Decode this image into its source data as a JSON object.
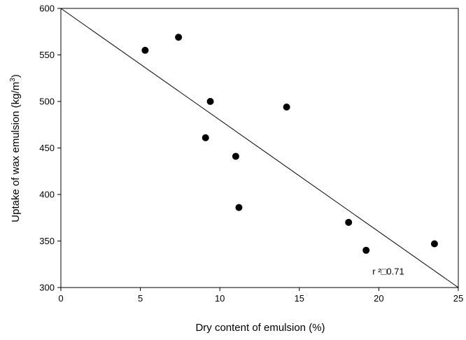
{
  "chart_data": {
    "type": "scatter",
    "title": "",
    "xlabel": "Dry content of emulsion (%)",
    "ylabel_main": "Uptake of wax emulsion (kg/m",
    "ylabel_sup": "3",
    "ylabel_close": ")",
    "xlim": [
      0,
      25
    ],
    "ylim": [
      300,
      600
    ],
    "xticks": [
      0,
      5,
      10,
      15,
      20,
      25
    ],
    "yticks": [
      300,
      350,
      400,
      450,
      500,
      550,
      600
    ],
    "grid": false,
    "series": [
      {
        "points": [
          {
            "x": 5.3,
            "y": 555
          },
          {
            "x": 7.4,
            "y": 569
          },
          {
            "x": 9.1,
            "y": 461
          },
          {
            "x": 9.4,
            "y": 500
          },
          {
            "x": 11.0,
            "y": 441
          },
          {
            "x": 11.2,
            "y": 386
          },
          {
            "x": 14.2,
            "y": 494
          },
          {
            "x": 18.1,
            "y": 370
          },
          {
            "x": 19.2,
            "y": 340
          },
          {
            "x": 23.5,
            "y": 347
          }
        ],
        "marker_color": "#000000"
      }
    ],
    "trendline": {
      "x1": 0,
      "y1": 600,
      "x2": 25,
      "y2": 300
    },
    "annotation": "r ²□0.71",
    "annotation_at": {
      "x": 19.6,
      "y": 314
    }
  }
}
